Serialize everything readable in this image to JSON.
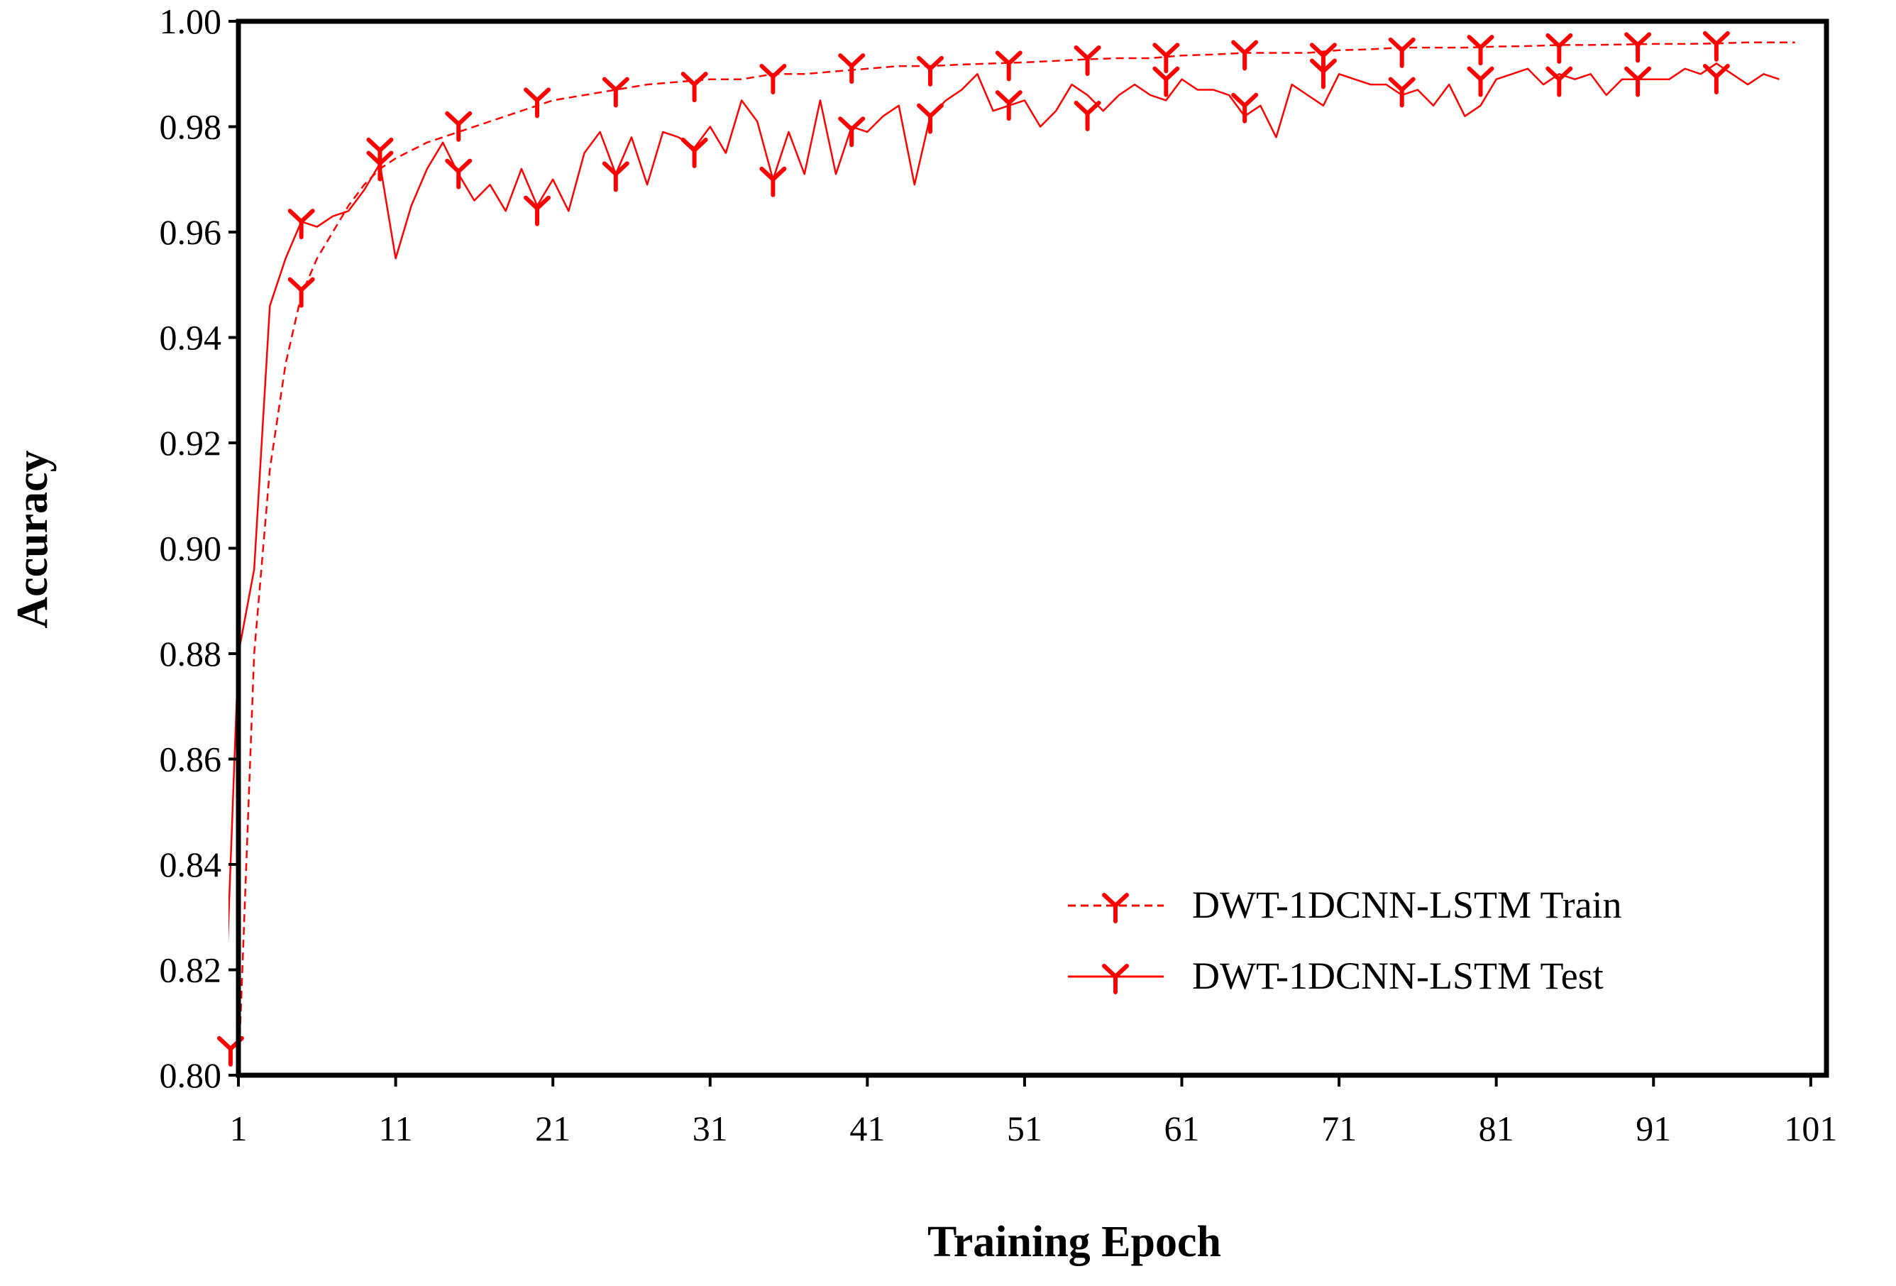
{
  "chart_data": {
    "type": "line",
    "title": "",
    "xlabel": "Training Epoch",
    "ylabel": "Accuracy",
    "xlim": [
      0,
      101
    ],
    "ylim": [
      0.8,
      1.0
    ],
    "x_ticks": [
      "1",
      "11",
      "21",
      "31",
      "41",
      "51",
      "61",
      "71",
      "81",
      "91",
      "101"
    ],
    "y_ticks": [
      "0.80",
      "0.82",
      "0.84",
      "0.86",
      "0.88",
      "0.90",
      "0.92",
      "0.94",
      "0.96",
      "0.98",
      "1.00"
    ],
    "legend_position": "bottom-right",
    "grid": false,
    "line_color": "#ff0000",
    "series": [
      {
        "name": "DWT-1DCNN-LSTM Train",
        "style": "dashed",
        "marker": "tri-down",
        "x": [
          0,
          1,
          2,
          3,
          4,
          5,
          6,
          7,
          8,
          9,
          10,
          12,
          14,
          16,
          18,
          20,
          22,
          24,
          26,
          28,
          30,
          32,
          34,
          36,
          38,
          40,
          42,
          44,
          46,
          48,
          50,
          52,
          54,
          56,
          58,
          60,
          62,
          64,
          66,
          68,
          70,
          72,
          74,
          76,
          78,
          80,
          82,
          84,
          86,
          88,
          90,
          92,
          94,
          96,
          98,
          99
        ],
        "y": [
          0.8,
          0.88,
          0.915,
          0.935,
          0.948,
          0.955,
          0.96,
          0.965,
          0.969,
          0.972,
          0.974,
          0.977,
          0.979,
          0.981,
          0.983,
          0.985,
          0.986,
          0.987,
          0.988,
          0.9885,
          0.989,
          0.989,
          0.99,
          0.99,
          0.9905,
          0.991,
          0.9915,
          0.9915,
          0.9918,
          0.992,
          0.9922,
          0.9925,
          0.9928,
          0.993,
          0.993,
          0.9935,
          0.9937,
          0.994,
          0.994,
          0.994,
          0.9945,
          0.9947,
          0.995,
          0.995,
          0.995,
          0.9952,
          0.9953,
          0.9955,
          0.9955,
          0.9956,
          0.9957,
          0.9957,
          0.9958,
          0.996,
          0.996,
          0.996
        ],
        "marker_x": [
          -0.5,
          4,
          9,
          14,
          19,
          24,
          29,
          34,
          39,
          44,
          49,
          54,
          59,
          64,
          69,
          74,
          79,
          84,
          89,
          94
        ],
        "marker_y": [
          0.805,
          0.949,
          0.9755,
          0.9805,
          0.985,
          0.987,
          0.988,
          0.9895,
          0.9915,
          0.991,
          0.992,
          0.993,
          0.9935,
          0.994,
          0.9935,
          0.9945,
          0.995,
          0.9953,
          0.9955,
          0.9957
        ]
      },
      {
        "name": "DWT-1DCNN-LSTM Test",
        "style": "solid",
        "marker": "tri-down",
        "x": [
          -1,
          0,
          1,
          2,
          3,
          4,
          5,
          6,
          7,
          8,
          9,
          10,
          11,
          12,
          13,
          14,
          15,
          16,
          17,
          18,
          19,
          20,
          21,
          22,
          23,
          24,
          25,
          26,
          27,
          28,
          29,
          30,
          31,
          32,
          33,
          34,
          35,
          36,
          37,
          38,
          39,
          40,
          41,
          42,
          43,
          44,
          45,
          46,
          47,
          48,
          49,
          50,
          51,
          52,
          53,
          54,
          55,
          56,
          57,
          58,
          59,
          60,
          61,
          62,
          63,
          64,
          65,
          66,
          67,
          68,
          69,
          70,
          71,
          72,
          73,
          74,
          75,
          76,
          77,
          78,
          79,
          80,
          81,
          82,
          83,
          84,
          85,
          86,
          87,
          88,
          89,
          90,
          91,
          92,
          93,
          94,
          95,
          96,
          97,
          98
        ],
        "y": [
          0.8,
          0.88,
          0.896,
          0.946,
          0.955,
          0.962,
          0.961,
          0.963,
          0.964,
          0.968,
          0.973,
          0.955,
          0.965,
          0.972,
          0.977,
          0.971,
          0.966,
          0.969,
          0.964,
          0.972,
          0.965,
          0.97,
          0.964,
          0.975,
          0.979,
          0.971,
          0.978,
          0.969,
          0.979,
          0.978,
          0.976,
          0.98,
          0.975,
          0.985,
          0.981,
          0.97,
          0.979,
          0.971,
          0.985,
          0.971,
          0.98,
          0.979,
          0.982,
          0.984,
          0.969,
          0.982,
          0.985,
          0.987,
          0.99,
          0.983,
          0.984,
          0.985,
          0.98,
          0.983,
          0.988,
          0.986,
          0.983,
          0.986,
          0.988,
          0.986,
          0.985,
          0.989,
          0.987,
          0.987,
          0.986,
          0.982,
          0.984,
          0.978,
          0.988,
          0.986,
          0.984,
          0.99,
          0.989,
          0.988,
          0.988,
          0.986,
          0.987,
          0.984,
          0.988,
          0.982,
          0.984,
          0.989,
          0.99,
          0.991,
          0.988,
          0.99,
          0.989,
          0.99,
          0.986,
          0.989,
          0.989,
          0.989,
          0.989,
          0.991,
          0.99,
          0.992,
          0.99,
          0.988,
          0.99,
          0.989
        ],
        "marker_x": [
          4,
          9,
          14,
          19,
          24,
          29,
          34,
          39,
          44,
          49,
          54,
          59,
          64,
          69,
          74,
          79,
          84,
          89,
          94
        ],
        "marker_y": [
          0.962,
          0.973,
          0.9715,
          0.9645,
          0.971,
          0.9755,
          0.97,
          0.9795,
          0.982,
          0.9845,
          0.9825,
          0.989,
          0.984,
          0.9905,
          0.987,
          0.989,
          0.989,
          0.989,
          0.9895
        ]
      }
    ]
  }
}
